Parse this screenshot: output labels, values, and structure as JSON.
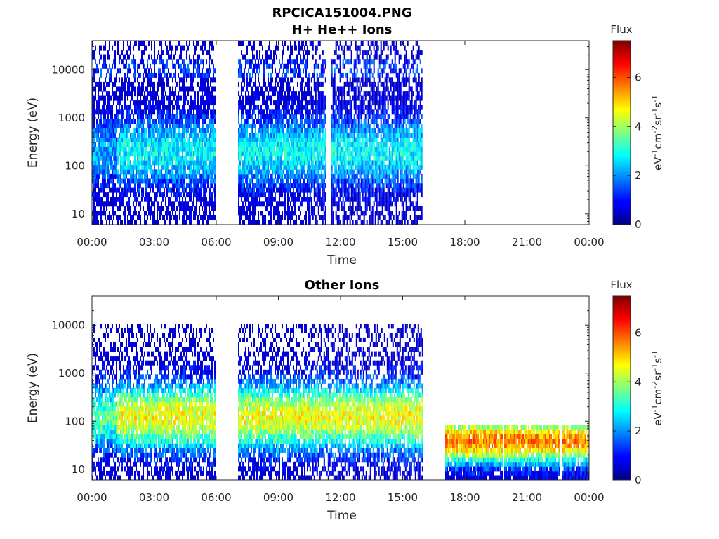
{
  "figure": {
    "title": "RPCICA151004.PNG"
  },
  "colors": {
    "colormap": "jet",
    "axis": "#262626",
    "background": "#ffffff"
  },
  "chart_data": [
    {
      "type": "heatmap",
      "title": "H+ He++ Ions",
      "xlabel": "Time",
      "ylabel": "Energy (eV)",
      "x_tick_labels": [
        "00:00",
        "03:00",
        "06:00",
        "09:00",
        "12:00",
        "15:00",
        "18:00",
        "21:00",
        "00:00"
      ],
      "x_range_hours": [
        0,
        24
      ],
      "y_scale": "log",
      "ylim_eV": [
        6,
        40000
      ],
      "y_ticks": [
        10,
        100,
        1000,
        10000
      ],
      "y_tick_labels": [
        "10",
        "100",
        "1000",
        "10000"
      ],
      "colorbar": {
        "title": "Flux",
        "label": "eV⁻¹cm⁻²sr⁻¹s⁻¹",
        "range": [
          0,
          7.5
        ],
        "ticks": [
          0,
          2,
          4,
          6
        ],
        "tick_labels": [
          "0",
          "2",
          "4",
          "6"
        ]
      },
      "data_intervals_hours": [
        [
          0,
          5.95
        ],
        [
          7.05,
          10.5
        ],
        [
          10.5,
          11.3
        ],
        [
          11.55,
          15.95
        ]
      ],
      "energy_cutoff_eV": 40000
    },
    {
      "type": "heatmap",
      "title": "Other Ions",
      "xlabel": "Time",
      "ylabel": "Energy (eV)",
      "x_tick_labels": [
        "00:00",
        "03:00",
        "06:00",
        "09:00",
        "12:00",
        "15:00",
        "18:00",
        "21:00",
        "00:00"
      ],
      "x_range_hours": [
        0,
        24
      ],
      "y_scale": "log",
      "ylim_eV": [
        6,
        40000
      ],
      "y_ticks": [
        10,
        100,
        1000,
        10000
      ],
      "y_tick_labels": [
        "10",
        "100",
        "1000",
        "10000"
      ],
      "colorbar": {
        "title": "Flux",
        "label": "eV⁻¹cm⁻²sr⁻¹s⁻¹",
        "range": [
          0,
          7.5
        ],
        "ticks": [
          0,
          2,
          4,
          6
        ],
        "tick_labels": [
          "0",
          "2",
          "4",
          "6"
        ]
      },
      "data_intervals_hours": [
        [
          0,
          5.95
        ],
        [
          7.05,
          10.5
        ],
        [
          10.5,
          15.95
        ],
        [
          17.05,
          19.8
        ],
        [
          19.9,
          22.6
        ],
        [
          22.7,
          24
        ]
      ],
      "energy_cutoff_eV": 11000,
      "late_interval_cutoff_eV": 80
    }
  ]
}
